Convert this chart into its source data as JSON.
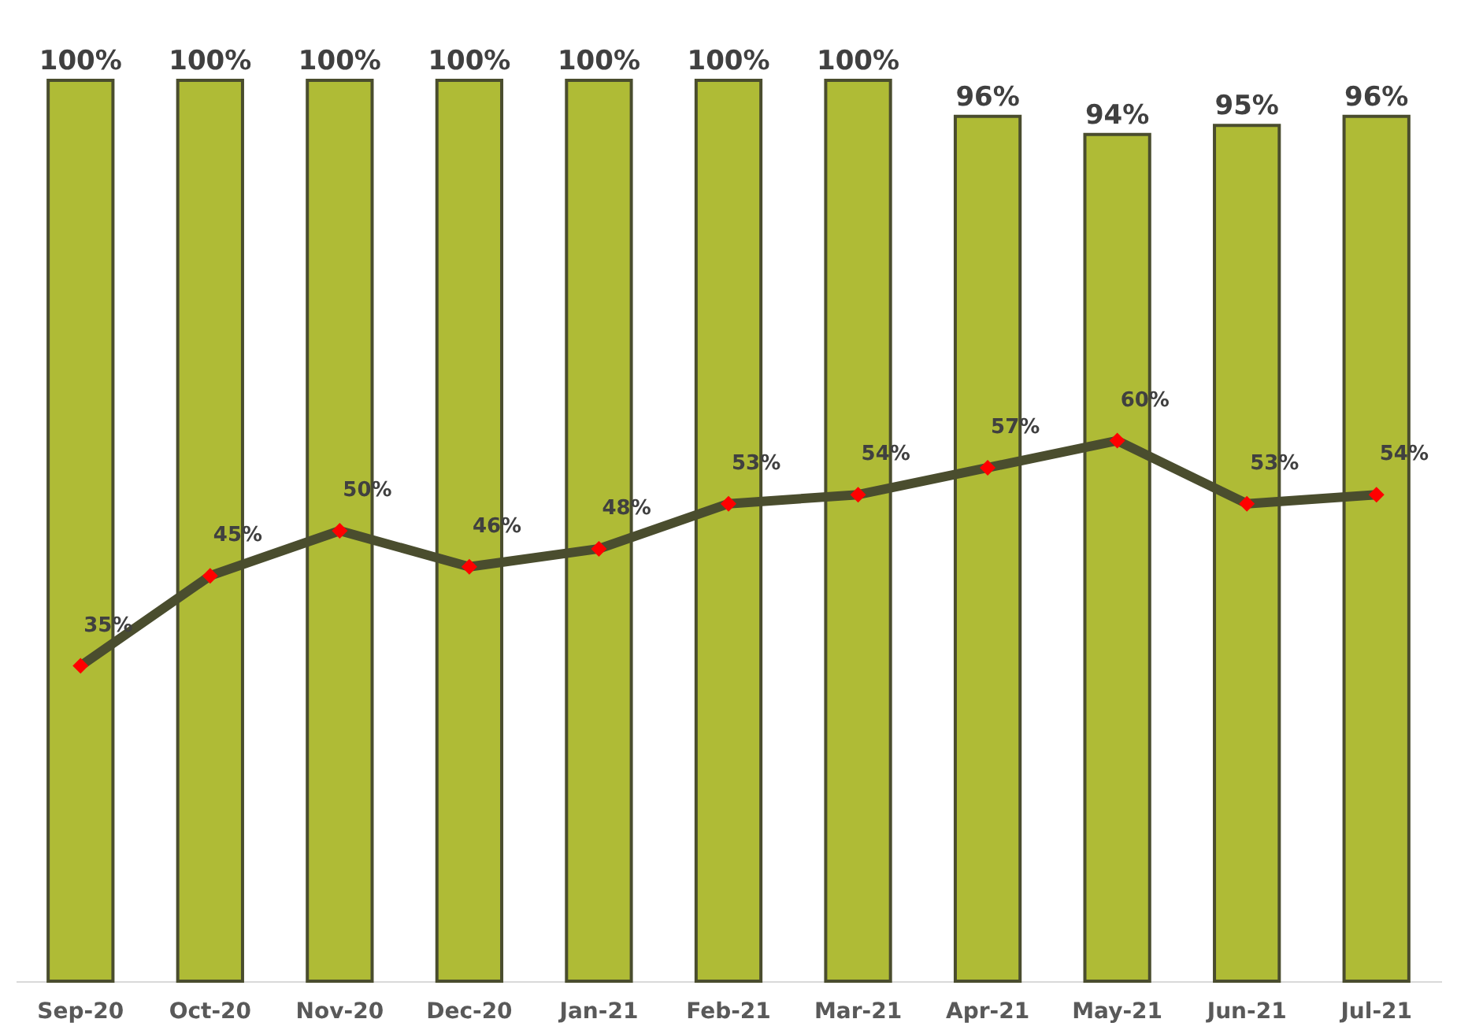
{
  "chart_data": {
    "type": "bar",
    "categories": [
      "Sep-20",
      "Oct-20",
      "Nov-20",
      "Dec-20",
      "Jan-21",
      "Feb-21",
      "Mar-21",
      "Apr-21",
      "May-21",
      "Jun-21",
      "Jul-21"
    ],
    "series": [
      {
        "color": "#afbb36",
        "values": [
          100,
          100,
          100,
          100,
          100,
          100,
          100,
          96,
          94,
          95,
          96
        ],
        "value_labels": [
          "100%",
          "100%",
          "100%",
          "100%",
          "100%",
          "100%",
          "100%",
          "96%",
          "94%",
          "95%",
          "96%"
        ]
      },
      {
        "type": "line",
        "color": "#4a4d2e",
        "values": [
          35,
          45,
          50,
          46,
          48,
          53,
          54,
          57,
          60,
          53,
          54
        ],
        "value_labels": [
          "35%",
          "45%",
          "50%",
          "46%",
          "48%",
          "53%",
          "54%",
          "57%",
          "60%",
          "53%",
          "54%"
        ]
      }
    ],
    "marker": "diamond",
    "line_style": "solid",
    "grid": false,
    "legend": false,
    "tick_labels": "x"
  }
}
